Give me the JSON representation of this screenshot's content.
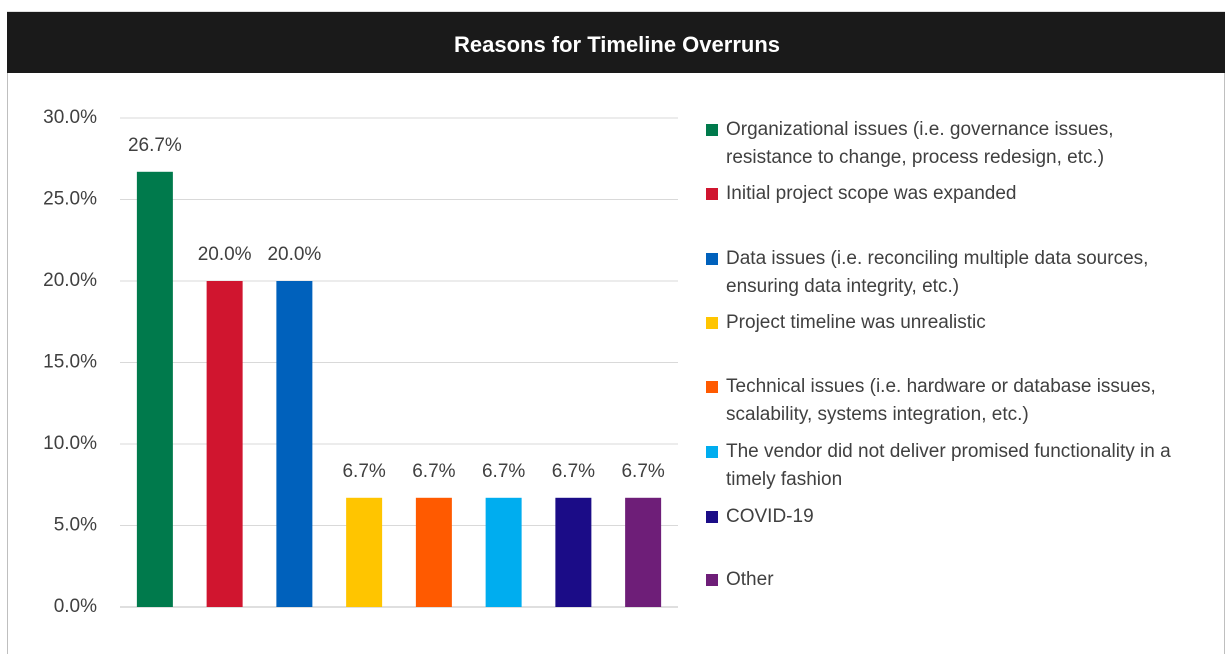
{
  "chart_data": {
    "type": "bar",
    "title": "Reasons for Timeline Overruns",
    "categories": [
      "Organizational issues (i.e. governance issues, resistance to change, process redesign, etc.)",
      "Initial project scope was expanded",
      "Data issues (i.e. reconciling multiple data sources, ensuring data integrity, etc.)",
      "Project timeline was unrealistic",
      "Technical issues (i.e. hardware or database issues, scalability, systems integration, etc.)",
      "The vendor did not deliver promised functionality in a timely fashion",
      "COVID-19",
      "Other"
    ],
    "values": [
      26.7,
      20.0,
      20.0,
      6.7,
      6.7,
      6.7,
      6.7,
      6.7
    ],
    "value_labels": [
      "26.7%",
      "20.0%",
      "20.0%",
      "6.7%",
      "6.7%",
      "6.7%",
      "6.7%",
      "6.7%"
    ],
    "colors": [
      "#007a4c",
      "#d0152f",
      "#0061bc",
      "#ffc500",
      "#ff5a00",
      "#00adef",
      "#1b0c87",
      "#6e1e78"
    ],
    "ylim": [
      0,
      30
    ],
    "yticks": [
      {
        "value": 0,
        "label": "0.0%"
      },
      {
        "value": 5,
        "label": "5.0%"
      },
      {
        "value": 10,
        "label": "10.0%"
      },
      {
        "value": 15,
        "label": "15.0%"
      },
      {
        "value": 20,
        "label": "20.0%"
      },
      {
        "value": 25,
        "label": "25.0%"
      },
      {
        "value": 30,
        "label": "30.0%"
      }
    ],
    "grid": true,
    "legend": "right"
  }
}
